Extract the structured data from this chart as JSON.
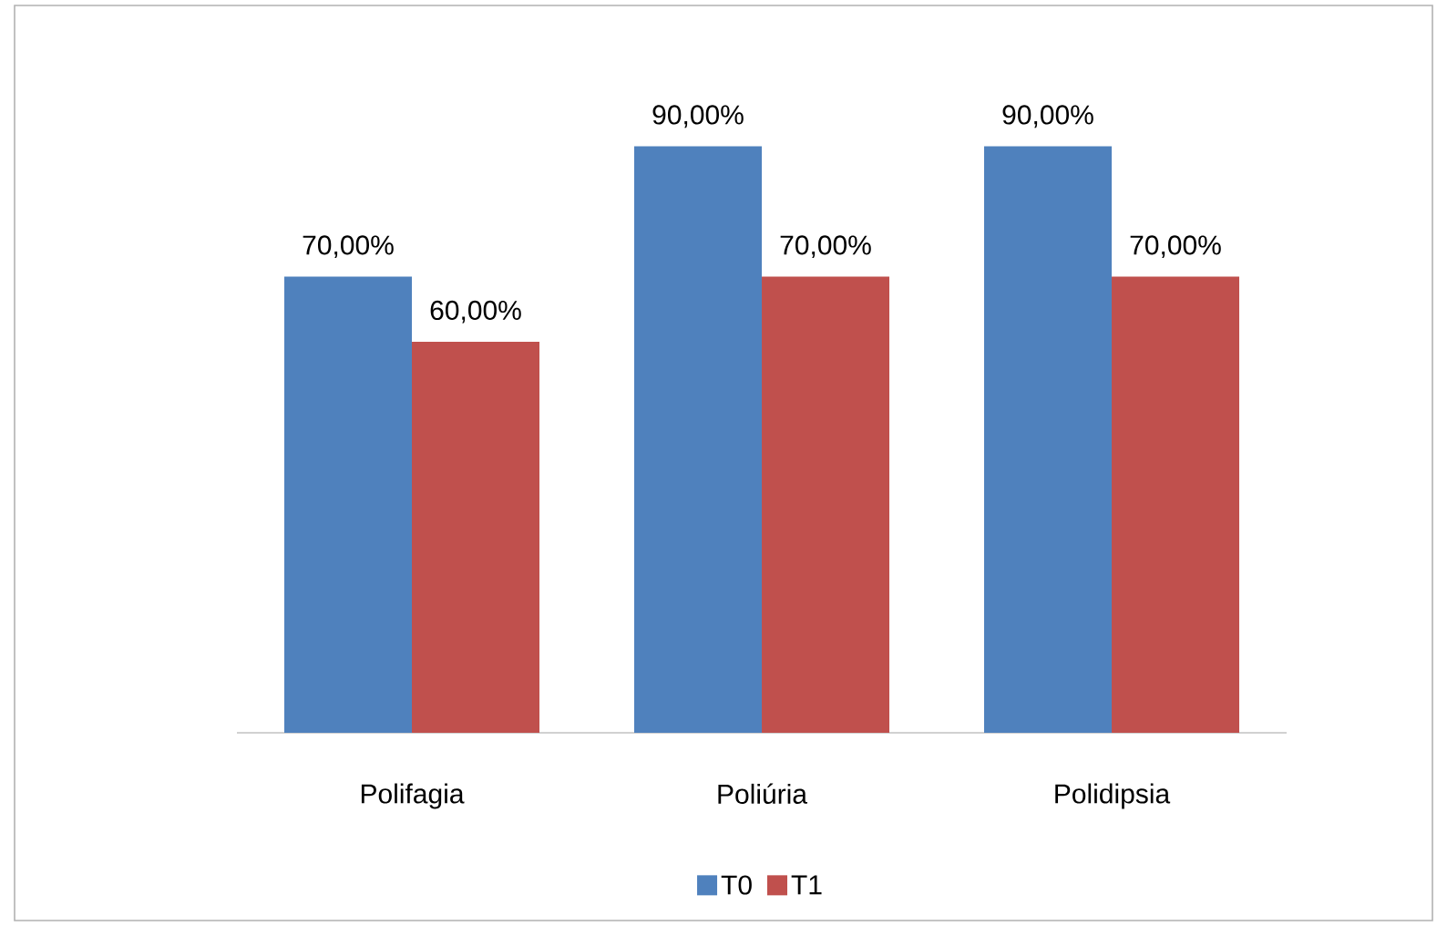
{
  "chart_data": {
    "type": "bar",
    "categories": [
      "Polifagia",
      "Poliúria",
      "Polidipsia"
    ],
    "series": [
      {
        "name": "T0",
        "color": "#4f81bd",
        "values": [
          70,
          90,
          90
        ],
        "value_labels": [
          "70,00%",
          "90,00%",
          "90,00%"
        ]
      },
      {
        "name": "T1",
        "color": "#c0504d",
        "values": [
          60,
          70,
          70
        ],
        "value_labels": [
          "60,00%",
          "70,00%",
          "70,00%"
        ]
      }
    ],
    "legend": "bottom"
  }
}
